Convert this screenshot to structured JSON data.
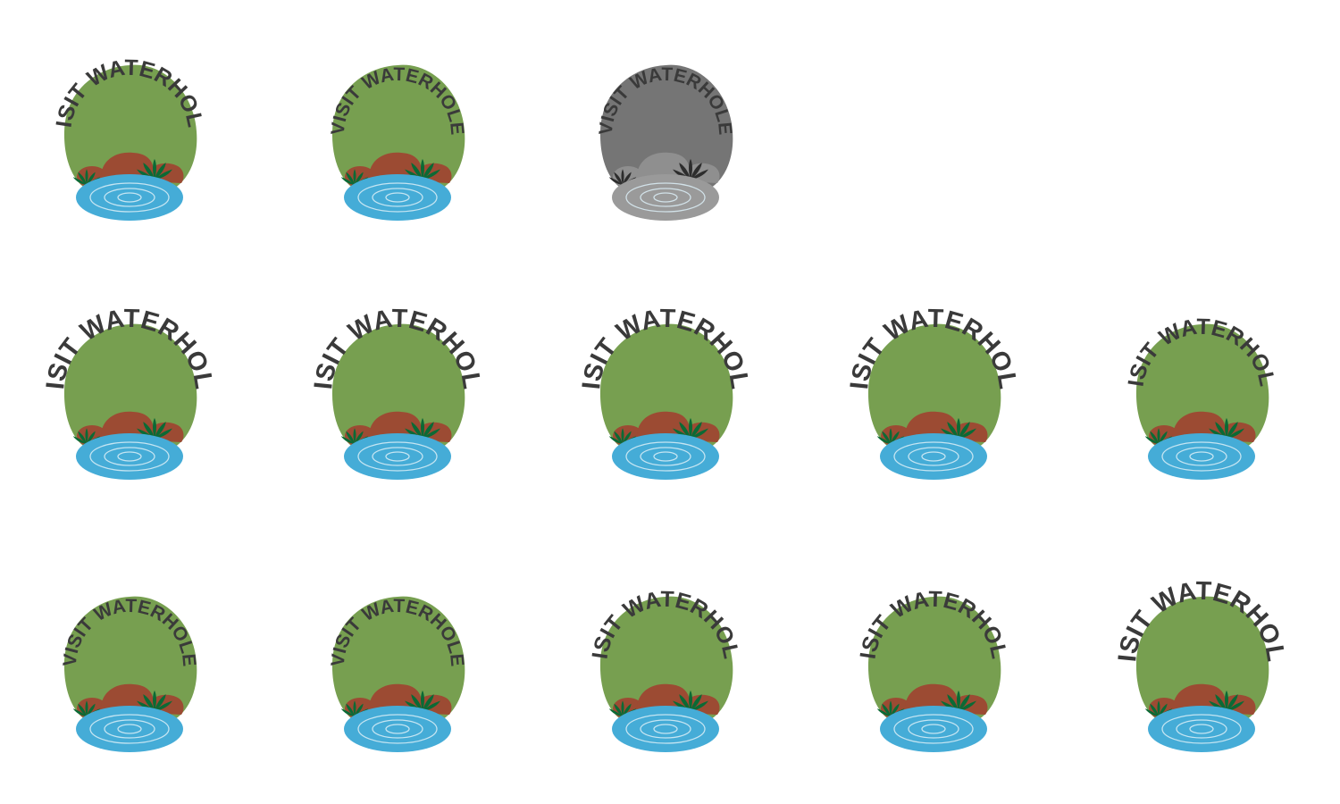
{
  "badge_label": "VISIT WATERHOLE",
  "colors": {
    "text": "#3a3a3a",
    "grass": "#779f50",
    "rock": "#9c4b33",
    "water": "#45acd7",
    "ripple": "#dceef7",
    "plant": "#0b6a35",
    "gray_background": "#757575",
    "gray_rock": "#8f8f8f",
    "gray_water": "#9a9a9a",
    "gray_plant": "#2d2d2d"
  },
  "rows": [
    {
      "name": "row-1",
      "badges": [
        {
          "name": "badge-row1-col1",
          "theme": "color",
          "text_size": "medium"
        },
        {
          "name": "badge-row1-col2",
          "theme": "color",
          "text_size": "small"
        },
        {
          "name": "badge-row1-col3",
          "theme": "grayscale",
          "text_size": "small"
        }
      ]
    },
    {
      "name": "row-2",
      "badges": [
        {
          "name": "badge-row2-col1",
          "theme": "color",
          "text_size": "large"
        },
        {
          "name": "badge-row2-col2",
          "theme": "color",
          "text_size": "large"
        },
        {
          "name": "badge-row2-col3",
          "theme": "color",
          "text_size": "large"
        },
        {
          "name": "badge-row2-col4",
          "theme": "color",
          "text_size": "large"
        },
        {
          "name": "badge-row2-col5",
          "theme": "color",
          "text_size": "medium"
        }
      ]
    },
    {
      "name": "row-3",
      "badges": [
        {
          "name": "badge-row3-col1",
          "theme": "color",
          "text_size": "small"
        },
        {
          "name": "badge-row3-col2",
          "theme": "color",
          "text_size": "small"
        },
        {
          "name": "badge-row3-col3",
          "theme": "color",
          "text_size": "medium"
        },
        {
          "name": "badge-row3-col4",
          "theme": "color",
          "text_size": "medium"
        },
        {
          "name": "badge-row3-col5",
          "theme": "color",
          "text_size": "large"
        }
      ]
    }
  ]
}
